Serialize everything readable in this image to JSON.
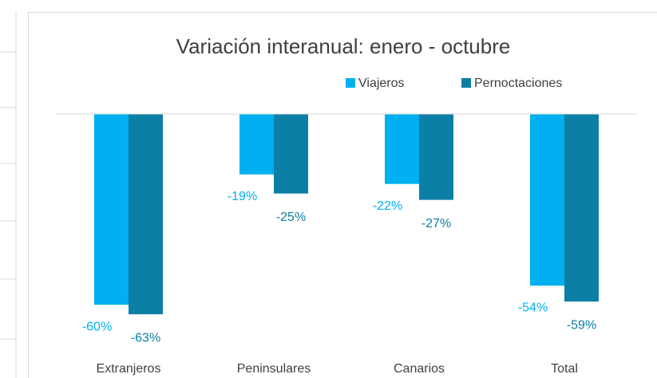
{
  "chart_data": {
    "type": "bar",
    "title": "Variación interanual: enero - octubre",
    "categories": [
      "Extranjeros",
      "Peninsulares",
      "Canarios",
      "Total"
    ],
    "series": [
      {
        "name": "Viajeros",
        "color": "#00b0f0",
        "values": [
          -60,
          -19,
          -22,
          -54
        ],
        "value_labels": [
          "-60%",
          "-19%",
          "-22%",
          "-54%"
        ]
      },
      {
        "name": "Pernoctaciones",
        "color": "#0b7fa5",
        "values": [
          -63,
          -25,
          -27,
          -59
        ],
        "value_labels": [
          "-63%",
          "-25%",
          "-27%",
          "-59%"
        ]
      }
    ],
    "ylim": [
      -70,
      0
    ],
    "legend": "top-right"
  }
}
